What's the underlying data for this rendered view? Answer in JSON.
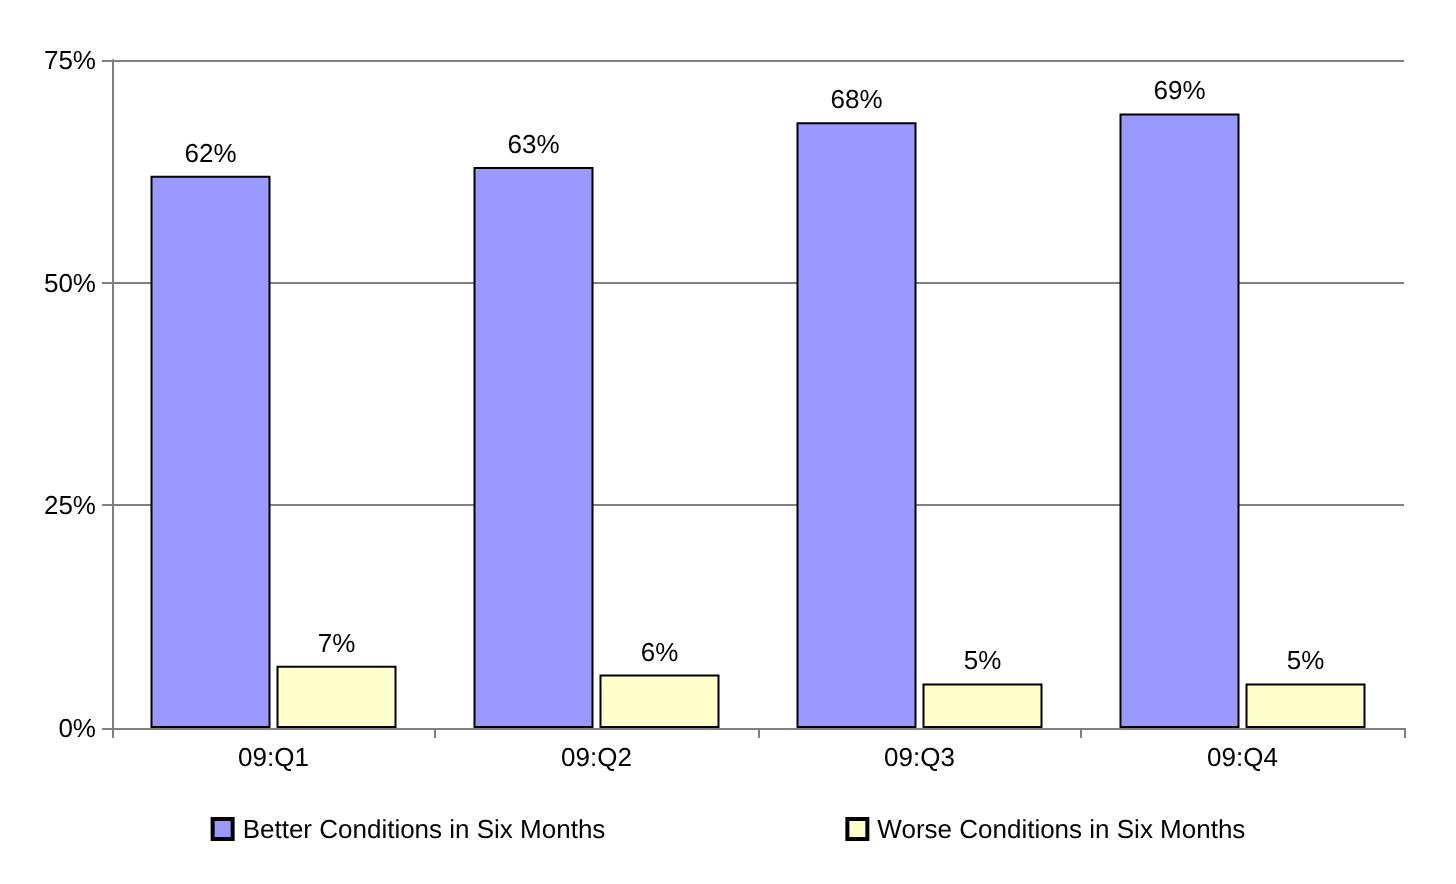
{
  "chart_data": {
    "type": "bar",
    "categories": [
      "09:Q1",
      "09:Q2",
      "09:Q3",
      "09:Q4"
    ],
    "series": [
      {
        "name": "Better Conditions in Six Months",
        "color": "#9999ff",
        "values": [
          62,
          63,
          68,
          69
        ],
        "value_labels": [
          "62%",
          "63%",
          "68%",
          "69%"
        ]
      },
      {
        "name": "Worse Conditions in Six Months",
        "color": "#ffffcc",
        "values": [
          7,
          6,
          5,
          5
        ],
        "value_labels": [
          "7%",
          "6%",
          "5%",
          "5%"
        ]
      }
    ],
    "ylim": [
      0,
      75
    ],
    "yticks": [
      {
        "value": 0,
        "label": "0%"
      },
      {
        "value": 25,
        "label": "25%"
      },
      {
        "value": 50,
        "label": "50%"
      },
      {
        "value": 75,
        "label": "75%"
      }
    ],
    "grid": "y",
    "legend": "bottom"
  }
}
